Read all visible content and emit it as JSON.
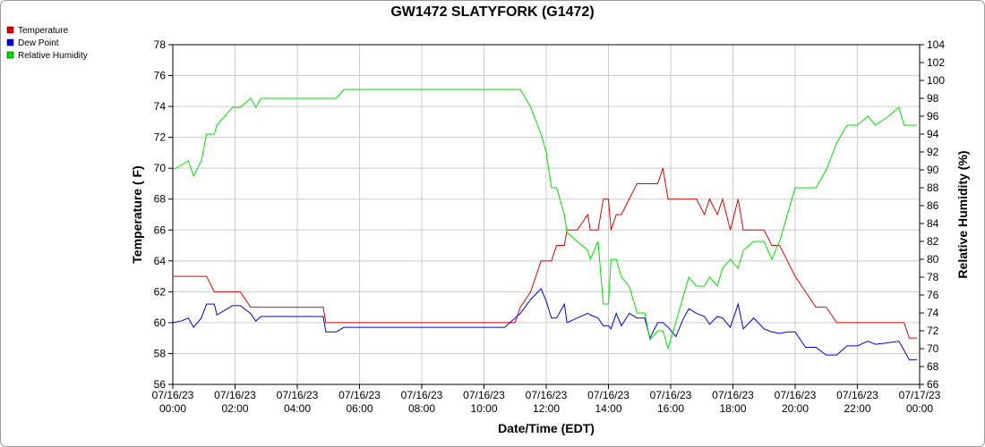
{
  "chart_data": {
    "type": "line",
    "title": "GW1472 SLATYFORK (G1472)",
    "x_label": "Date/Time (EDT)",
    "y_label": "Temperature ( F)",
    "y2_label": "Relative Humidity (%)",
    "x": [
      "07/16/23 00:00",
      "07/16/23 00:15",
      "07/16/23 00:30",
      "07/16/23 00:40",
      "07/16/23 00:55",
      "07/16/23 01:05",
      "07/16/23 01:20",
      "07/16/23 01:25",
      "07/16/23 01:40",
      "07/16/23 01:55",
      "07/16/23 02:10",
      "07/16/23 02:30",
      "07/16/23 02:40",
      "07/16/23 02:50",
      "07/16/23 04:00",
      "07/16/23 04:50",
      "07/16/23 04:55",
      "07/16/23 05:15",
      "07/16/23 05:30",
      "07/16/23 08:00",
      "07/16/23 10:40",
      "07/16/23 11:00",
      "07/16/23 11:10",
      "07/16/23 11:30",
      "07/16/23 11:50",
      "07/16/23 12:00",
      "07/16/23 12:10",
      "07/16/23 12:20",
      "07/16/23 12:35",
      "07/16/23 12:40",
      "07/16/23 13:00",
      "07/16/23 13:20",
      "07/16/23 13:25",
      "07/16/23 13:40",
      "07/16/23 13:50",
      "07/16/23 14:00",
      "07/16/23 14:05",
      "07/16/23 14:15",
      "07/16/23 14:25",
      "07/16/23 14:40",
      "07/16/23 14:55",
      "07/16/23 15:10",
      "07/16/23 15:20",
      "07/16/23 15:35",
      "07/16/23 15:45",
      "07/16/23 15:55",
      "07/16/23 16:10",
      "07/16/23 16:25",
      "07/16/23 16:35",
      "07/16/23 16:50",
      "07/16/23 17:05",
      "07/16/23 17:15",
      "07/16/23 17:30",
      "07/16/23 17:40",
      "07/16/23 17:55",
      "07/16/23 18:10",
      "07/16/23 18:20",
      "07/16/23 18:40",
      "07/16/23 19:00",
      "07/16/23 19:15",
      "07/16/23 19:30",
      "07/16/23 19:45",
      "07/16/23 20:00",
      "07/16/23 20:20",
      "07/16/23 20:40",
      "07/16/23 21:00",
      "07/16/23 21:20",
      "07/16/23 21:40",
      "07/16/23 22:00",
      "07/16/23 22:20",
      "07/16/23 22:35",
      "07/16/23 23:00",
      "07/16/23 23:20",
      "07/16/23 23:30",
      "07/16/23 23:40",
      "07/16/23 23:55"
    ],
    "series": [
      {
        "name": "Temperature",
        "color": "#e00000",
        "values": [
          63,
          63,
          63,
          63,
          63,
          63,
          62,
          62,
          62,
          62,
          62,
          61,
          61,
          61,
          61,
          61,
          60,
          60,
          60,
          60,
          60,
          60,
          61,
          62,
          64,
          64,
          64,
          65,
          65,
          66,
          66,
          67,
          66,
          66,
          68,
          68,
          66,
          67,
          67,
          68,
          69,
          69,
          69,
          69,
          70,
          68,
          68,
          68,
          68,
          68,
          67,
          68,
          67,
          68,
          66,
          68,
          66,
          66,
          66,
          65,
          65,
          64,
          63,
          62,
          61,
          61,
          60,
          60,
          60,
          60,
          60,
          60,
          60,
          60,
          59,
          59
        ]
      },
      {
        "name": "Dew Point",
        "color": "#0000e0",
        "values": [
          60.0,
          60.1,
          60.3,
          59.7,
          60.3,
          61.2,
          61.2,
          60.5,
          60.8,
          61.1,
          61.1,
          60.6,
          60.1,
          60.4,
          60.4,
          60.4,
          59.4,
          59.4,
          59.7,
          59.7,
          59.7,
          60.3,
          60.6,
          61.5,
          62.2,
          61.4,
          60.3,
          60.3,
          61.2,
          60.0,
          60.3,
          60.6,
          60.5,
          60.3,
          59.8,
          59.8,
          59.6,
          60.6,
          59.8,
          60.6,
          60.3,
          60.3,
          59.0,
          60.0,
          60.0,
          59.7,
          59.1,
          60.3,
          60.9,
          60.6,
          60.4,
          59.9,
          60.4,
          60.3,
          59.7,
          61.2,
          59.6,
          60.3,
          59.6,
          59.4,
          59.3,
          59.4,
          59.4,
          58.4,
          58.4,
          57.9,
          57.9,
          58.5,
          58.5,
          58.8,
          58.6,
          58.7,
          58.8,
          58.2,
          57.6,
          57.6
        ]
      },
      {
        "name": "Relative Humidity",
        "color": "#00e000",
        "axis": "y2",
        "values": [
          90,
          90.5,
          91,
          89.3,
          91,
          94,
          94,
          95,
          96,
          97,
          97,
          98,
          97,
          98,
          98,
          98,
          98,
          98,
          99,
          99,
          99,
          99,
          99,
          97,
          94,
          92,
          88,
          88,
          85,
          83,
          82,
          81,
          80,
          82,
          75,
          75,
          80,
          80,
          78,
          77,
          74,
          74,
          71,
          72,
          72,
          70,
          73,
          76,
          78,
          77,
          77,
          78,
          77,
          79,
          80,
          79,
          81,
          82,
          82,
          80,
          82,
          85,
          88,
          88,
          88,
          90,
          93,
          95,
          95,
          96,
          95,
          96,
          97,
          95,
          95,
          95
        ]
      }
    ],
    "xlim": [
      "07/16/23 00:00",
      "07/17/23 00:00"
    ],
    "xticks": [
      "07/16/23 00:00",
      "07/16/23 02:00",
      "07/16/23 04:00",
      "07/16/23 06:00",
      "07/16/23 08:00",
      "07/16/23 10:00",
      "07/16/23 12:00",
      "07/16/23 14:00",
      "07/16/23 16:00",
      "07/16/23 18:00",
      "07/16/23 20:00",
      "07/16/23 22:00",
      "07/17/23 00:00"
    ],
    "ylim": [
      56,
      78
    ],
    "yticks": [
      56,
      58,
      60,
      62,
      64,
      66,
      68,
      70,
      72,
      74,
      76,
      78
    ],
    "y2lim": [
      66,
      104
    ],
    "y2ticks": [
      66,
      68,
      70,
      72,
      74,
      76,
      78,
      80,
      82,
      84,
      86,
      88,
      90,
      92,
      94,
      96,
      98,
      100,
      102,
      104
    ],
    "grid": true,
    "legend": "top-left"
  }
}
